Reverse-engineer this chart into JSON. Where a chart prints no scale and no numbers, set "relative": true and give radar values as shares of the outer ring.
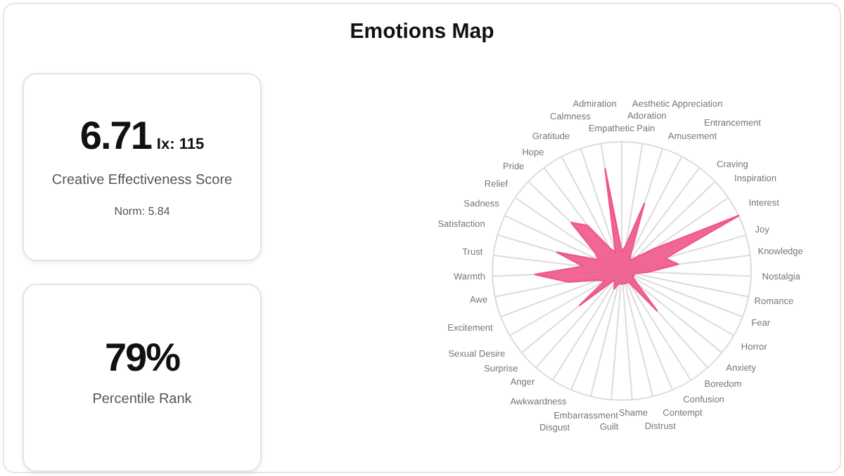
{
  "chart_data": [
    {
      "type": "other",
      "annotations": [
        "6.71",
        "Ix: 115",
        "Creative Effectiveness Score",
        "Norm: 5.84",
        "79%",
        "Percentile Rank"
      ]
    },
    {
      "type": "radar",
      "title": "Emotions Map",
      "relative": true,
      "grid": true,
      "legend": false,
      "categories": [
        "Empathetic Pain",
        "Adoration",
        "Aesthetic Appreciation",
        "Amusement",
        "Entrancement",
        "Craving",
        "Inspiration",
        "Interest",
        "Joy",
        "Knowledge",
        "Nostalgia",
        "Romance",
        "Fear",
        "Horror",
        "Anxiety",
        "Boredom",
        "Confusion",
        "Contempt",
        "Distrust",
        "Shame",
        "Guilt",
        "Embarrassment",
        "Disgust",
        "Awkwardness",
        "Anger",
        "Surprise",
        "Sexual Desire",
        "Excitement",
        "Awe",
        "Warmth",
        "Trust",
        "Satisfaction",
        "Sadness",
        "Relief",
        "Pride",
        "Hope",
        "Gratitude",
        "Calmness",
        "Admiration"
      ],
      "series": [
        {
          "color": "#f0588a",
          "values": [
            0.15,
            0.2,
            0.55,
            0.15,
            0.1,
            0.15,
            0.3,
            1,
            0.35,
            0.44,
            0.2,
            0.1,
            0.1,
            0.1,
            0.15,
            0.41,
            0.1,
            0.1,
            0.1,
            0.1,
            0.1,
            0.1,
            0.15,
            0.1,
            0.1,
            0.42,
            0.15,
            0.2,
            0.42,
            0.67,
            0.3,
            0.52,
            0.2,
            0.25,
            0.54,
            0.44,
            0.2,
            0.15,
            0.8
          ]
        }
      ]
    }
  ]
}
